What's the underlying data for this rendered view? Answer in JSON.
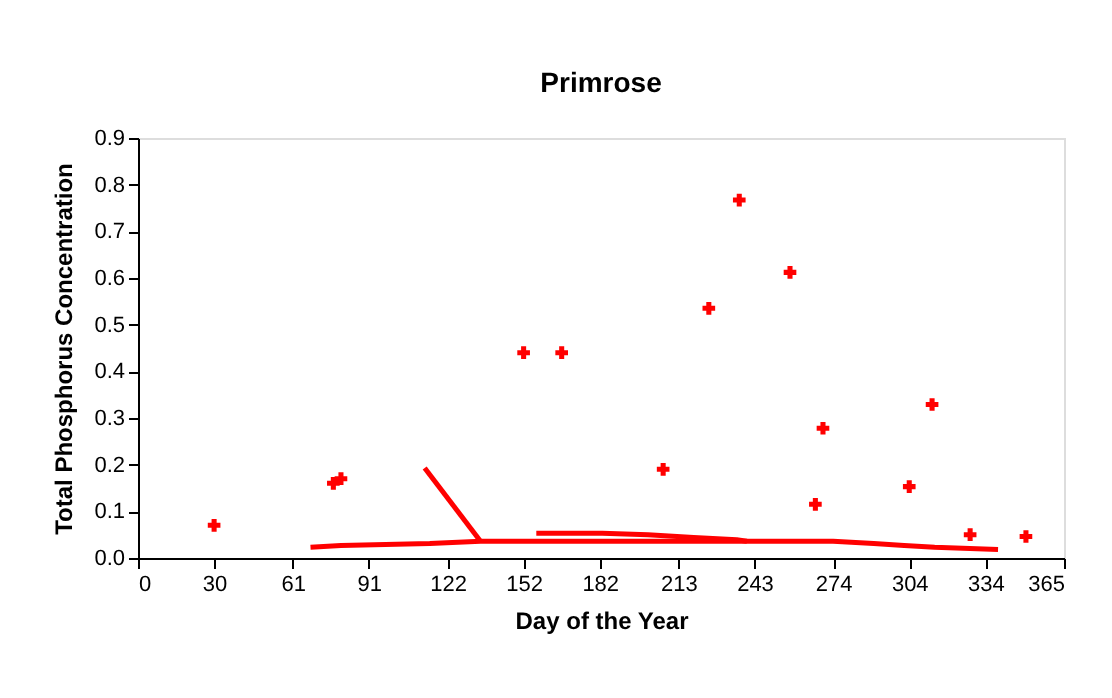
{
  "chart_data": {
    "type": "scatter",
    "title": "Primrose",
    "xlabel": "Day of the Year",
    "ylabel": "Total Phosphorus Concentration",
    "xlim": [
      0,
      365
    ],
    "xticks": [
      0,
      30,
      61,
      91,
      122,
      152,
      182,
      213,
      243,
      274,
      304,
      334,
      365
    ],
    "ylim": [
      0,
      0.9
    ],
    "yticks": [
      {
        "value": 0,
        "label": "0.0"
      },
      0.1,
      0.2,
      0.3,
      0.4,
      0.5,
      0.6,
      0.7,
      0.8,
      0.9
    ],
    "grid": false,
    "marker": "cross",
    "series": [
      {
        "color": "#ff0000",
        "x": [
          30,
          77,
          80,
          152,
          167,
          207,
          225,
          237,
          257,
          267,
          270,
          304,
          313,
          328,
          350
        ],
        "values": [
          0.07,
          0.16,
          0.17,
          0.44,
          0.44,
          0.19,
          0.535,
          0.767,
          0.612,
          0.115,
          0.278,
          0.153,
          0.329,
          0.05,
          0.046
        ]
      },
      {
        "type": "line",
        "marker": "none",
        "line_style": "solid",
        "color": "#ff0000",
        "x": [
          68,
          80,
          115,
          135,
          274,
          290,
          302,
          314,
          339
        ],
        "values": [
          0.023,
          0.027,
          0.031,
          0.036,
          0.036,
          0.031,
          0.027,
          0.023,
          0.018
        ]
      },
      {
        "type": "line",
        "marker": "none",
        "line_style": "solid",
        "color": "#ff0000",
        "x": [
          113,
          135
        ],
        "values": [
          0.193,
          0.036
        ]
      },
      {
        "type": "line",
        "marker": "none",
        "line_style": "solid",
        "color": "#ff0000",
        "x": [
          157,
          183,
          201,
          219,
          236,
          240
        ],
        "values": [
          0.053,
          0.053,
          0.05,
          0.044,
          0.039,
          0.036
        ]
      }
    ]
  }
}
